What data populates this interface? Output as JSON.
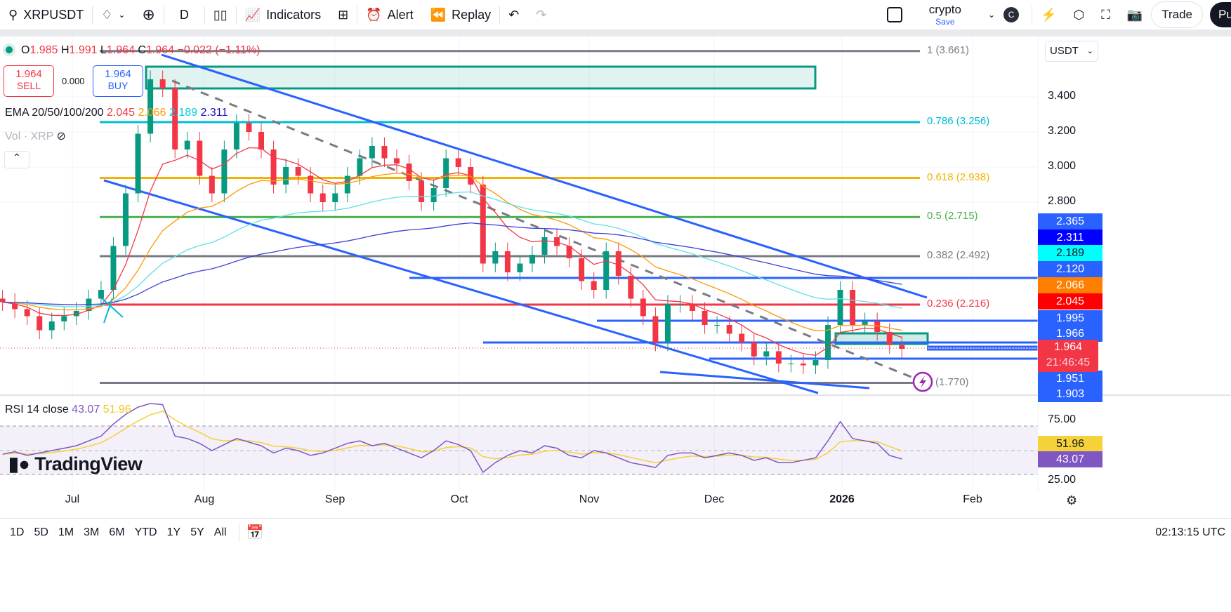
{
  "toolbar": {
    "symbol": "XRPUSDT",
    "interval": "D",
    "indicators": "Indicators",
    "alert": "Alert",
    "replay": "Replay",
    "layout_name": "crypto",
    "save": "Save",
    "avatar": "C",
    "trade": "Trade",
    "publish": "Pu"
  },
  "legend": {
    "o_label": "O",
    "o": "1.985",
    "h_label": "H",
    "h": "1.991",
    "l_label": "L",
    "l": "1.964",
    "c_label": "C",
    "c": "1.964",
    "change": "−0.022 (−1.11%)",
    "sell_price": "1.964",
    "sell": "SELL",
    "spread": "0.000",
    "buy_price": "1.964",
    "buy": "BUY",
    "ema_label": "EMA 20/50/100/200",
    "ema20": "2.045",
    "ema50": "2.066",
    "ema100": "2.189",
    "ema200": "2.311",
    "vol": "Vol · XRP",
    "rsi_label": "RSI 14 close",
    "rsi": "43.07",
    "rsi_ma": "51.96"
  },
  "currency": "USDT",
  "price_ticks": [
    "3.400",
    "3.200",
    "3.000",
    "2.800"
  ],
  "fib_levels": [
    {
      "label": "1 (3.661)",
      "price": 3.661,
      "color": "#787b86"
    },
    {
      "label": "0.786 (3.256)",
      "price": 3.256,
      "color": "#00bcd4"
    },
    {
      "label": "0.618 (2.938)",
      "price": 2.938,
      "color": "#f5b301"
    },
    {
      "label": "0.5 (2.715)",
      "price": 2.715,
      "color": "#4caf50"
    },
    {
      "label": "0.382 (2.492)",
      "price": 2.492,
      "color": "#787b86"
    },
    {
      "label": "0.236 (2.216)",
      "price": 2.216,
      "color": "#f23645"
    },
    {
      "label": "(1.770)",
      "price": 1.77,
      "color": "#787b86"
    }
  ],
  "axis_labels": [
    {
      "v": "2.365",
      "bg": "#2962ff",
      "fg": "#fff"
    },
    {
      "v": "2.311",
      "bg": "#0000ff",
      "fg": "#fff"
    },
    {
      "v": "2.189",
      "bg": "#00ffff",
      "fg": "#131722"
    },
    {
      "v": "2.120",
      "bg": "#2962ff",
      "fg": "#fff"
    },
    {
      "v": "2.066",
      "bg": "#ff7f00",
      "fg": "#fff"
    },
    {
      "v": "2.045",
      "bg": "#ff0000",
      "fg": "#fff"
    },
    {
      "v": "1.995",
      "bg": "#2962ff",
      "fg": "#fff"
    },
    {
      "v": "1.966",
      "bg": "#2962ff",
      "fg": "#fff"
    },
    {
      "v": "1.951",
      "bg": "#2962ff",
      "fg": "#fff"
    },
    {
      "v": "1.903",
      "bg": "#2962ff",
      "fg": "#fff"
    }
  ],
  "last_price": {
    "v": "1.964",
    "countdown": "21:46:45",
    "bg": "#f23645"
  },
  "rsi_ticks": [
    "75.00",
    "25.00"
  ],
  "rsi_axis": {
    "ma": "51.96",
    "rsi": "43.07"
  },
  "time_ticks": [
    "Jul",
    "Aug",
    "Sep",
    "Oct",
    "Nov",
    "Dec",
    "2026",
    "Feb"
  ],
  "timeframes": [
    "1D",
    "5D",
    "1M",
    "3M",
    "6M",
    "YTD",
    "1Y",
    "5Y",
    "All"
  ],
  "clock": "02:13:15 UTC",
  "watermark": "TradingView",
  "colors": {
    "up": "#089981",
    "down": "#f23645",
    "ema20": "#f23645",
    "ema50": "#ff9800",
    "ema100": "#5ce1e6",
    "ema200": "#3f3fd8",
    "rsi": "#7e57c2",
    "rsi_ma": "#f5d13a",
    "trend": "#2962ff"
  },
  "chart_data": {
    "type": "candlestick",
    "symbol": "XRPUSDT",
    "interval": "D",
    "dates": [
      "2025-06-14",
      "2025-06-17",
      "2025-06-20",
      "2025-06-23",
      "2025-06-26",
      "2025-06-29",
      "2025-07-02",
      "2025-07-05",
      "2025-07-08",
      "2025-07-11",
      "2025-07-14",
      "2025-07-17",
      "2025-07-20",
      "2025-07-23",
      "2025-07-26",
      "2025-07-29",
      "2025-08-01",
      "2025-08-04",
      "2025-08-07",
      "2025-08-10",
      "2025-08-13",
      "2025-08-16",
      "2025-08-19",
      "2025-08-22",
      "2025-08-25",
      "2025-08-28",
      "2025-08-31",
      "2025-09-03",
      "2025-09-06",
      "2025-09-09",
      "2025-09-12",
      "2025-09-15",
      "2025-09-18",
      "2025-09-21",
      "2025-09-24",
      "2025-09-27",
      "2025-09-30",
      "2025-10-03",
      "2025-10-06",
      "2025-10-09",
      "2025-10-12",
      "2025-10-15",
      "2025-10-18",
      "2025-10-21",
      "2025-10-24",
      "2025-10-27",
      "2025-10-30",
      "2025-11-02",
      "2025-11-05",
      "2025-11-08",
      "2025-11-11",
      "2025-11-14",
      "2025-11-17",
      "2025-11-20",
      "2025-11-23",
      "2025-11-26",
      "2025-11-29",
      "2025-12-02",
      "2025-12-05",
      "2025-12-08",
      "2025-12-11",
      "2025-12-14",
      "2025-12-17",
      "2025-12-20",
      "2025-12-23",
      "2025-12-26",
      "2025-12-29",
      "2026-01-01",
      "2026-01-04",
      "2026-01-07",
      "2026-01-10",
      "2026-01-13",
      "2026-01-16",
      "2026-01-19"
    ],
    "close": [
      2.23,
      2.19,
      2.15,
      2.07,
      2.12,
      2.15,
      2.18,
      2.25,
      2.3,
      2.55,
      2.85,
      3.19,
      3.5,
      3.45,
      3.1,
      3.15,
      2.95,
      2.85,
      3.1,
      3.25,
      3.2,
      3.1,
      2.9,
      3.0,
      2.95,
      2.85,
      2.8,
      2.85,
      2.95,
      3.05,
      3.12,
      3.05,
      3.02,
      2.92,
      2.8,
      2.88,
      3.05,
      3.0,
      2.9,
      2.45,
      2.52,
      2.4,
      2.45,
      2.5,
      2.6,
      2.55,
      2.48,
      2.35,
      2.3,
      2.52,
      2.38,
      2.25,
      2.15,
      2.0,
      2.22,
      2.22,
      2.18,
      2.1,
      2.1,
      2.05,
      2.0,
      1.92,
      1.95,
      1.88,
      1.88,
      1.87,
      1.9,
      2.1,
      2.3,
      2.1,
      2.12,
      2.06,
      1.985,
      1.964
    ],
    "rsi": [
      47,
      49,
      46,
      48,
      50,
      52,
      54,
      58,
      62,
      72,
      80,
      86,
      89,
      88,
      62,
      60,
      56,
      50,
      55,
      60,
      57,
      54,
      48,
      52,
      50,
      46,
      48,
      52,
      56,
      58,
      54,
      56,
      52,
      48,
      44,
      50,
      58,
      55,
      50,
      32,
      40,
      46,
      50,
      48,
      54,
      52,
      46,
      44,
      50,
      48,
      44,
      40,
      38,
      36,
      46,
      48,
      48,
      44,
      46,
      48,
      46,
      42,
      44,
      40,
      40,
      42,
      44,
      58,
      74,
      60,
      58,
      56,
      46,
      43
    ],
    "price_range": [
      1.72,
      3.74
    ],
    "rsi_range": [
      15,
      95
    ]
  }
}
